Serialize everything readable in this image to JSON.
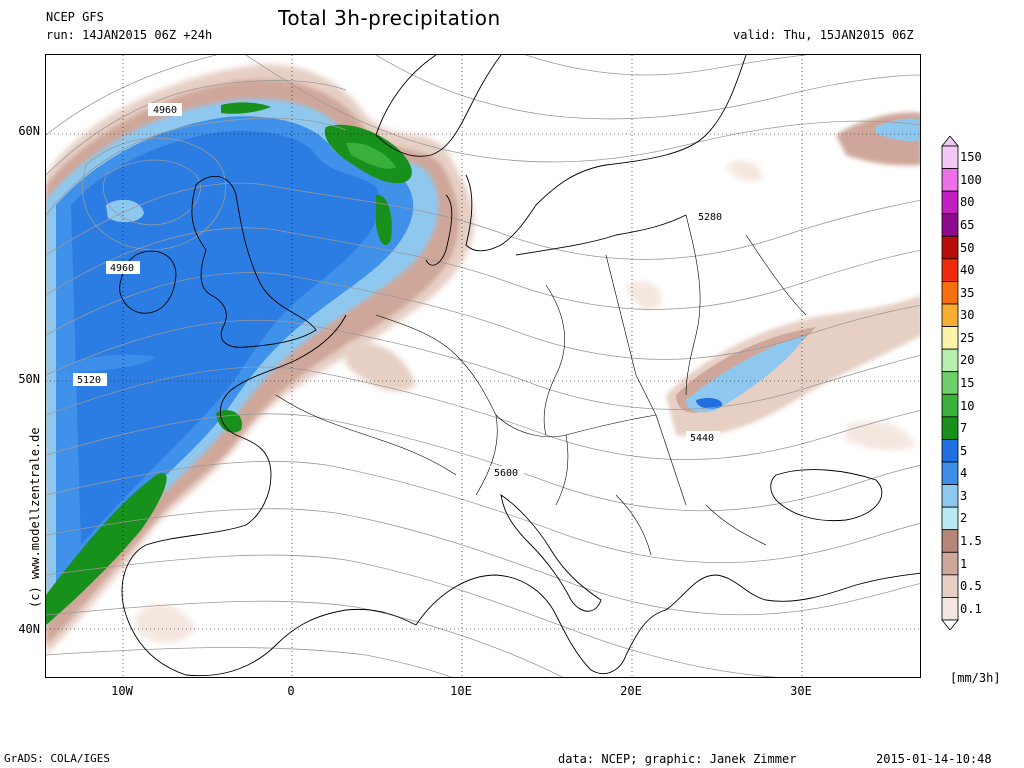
{
  "header": {
    "model": "NCEP GFS",
    "run": "run: 14JAN2015 06Z +24h",
    "title": "Total 3h-precipitation",
    "valid": "valid: Thu, 15JAN2015 06Z"
  },
  "footer": {
    "grads": "GrADS: COLA/IGES",
    "data_credit": "data: NCEP; graphic: Janek Zimmer",
    "timestamp": "2015-01-14-10:48",
    "vertical_credit": "(c) www.modellzentrale.de"
  },
  "axes": {
    "lat_labels": [
      "60N",
      "50N",
      "40N"
    ],
    "lon_labels": [
      "10W",
      "0",
      "10E",
      "20E",
      "30E"
    ]
  },
  "contour_labels": [
    "4960",
    "4960",
    "5120",
    "5280",
    "5440",
    "5600"
  ],
  "legend": {
    "units": "[mm/3h]",
    "levels": [
      {
        "label": "150",
        "color": "#f4c8f4"
      },
      {
        "label": "100",
        "color": "#ee6ee8"
      },
      {
        "label": "80",
        "color": "#c21fc2"
      },
      {
        "label": "65",
        "color": "#8e0b8e"
      },
      {
        "label": "50",
        "color": "#b80d0d"
      },
      {
        "label": "40",
        "color": "#ee2b0b"
      },
      {
        "label": "35",
        "color": "#f56f0e"
      },
      {
        "label": "30",
        "color": "#f8ae32"
      },
      {
        "label": "25",
        "color": "#fbf4a8"
      },
      {
        "label": "20",
        "color": "#b8eeaf"
      },
      {
        "label": "15",
        "color": "#6ed06a"
      },
      {
        "label": "10",
        "color": "#38b03a"
      },
      {
        "label": "7",
        "color": "#18901c"
      },
      {
        "label": "5",
        "color": "#1f6fe0"
      },
      {
        "label": "4",
        "color": "#3c8ee8"
      },
      {
        "label": "3",
        "color": "#8fc8ef"
      },
      {
        "label": "2",
        "color": "#b9eaf3"
      },
      {
        "label": "1.5",
        "color": "#b5877a"
      },
      {
        "label": "1",
        "color": "#cfa79a"
      },
      {
        "label": "0.5",
        "color": "#e6cfc4"
      },
      {
        "label": "0.1",
        "color": "#f4e7e0"
      }
    ]
  }
}
